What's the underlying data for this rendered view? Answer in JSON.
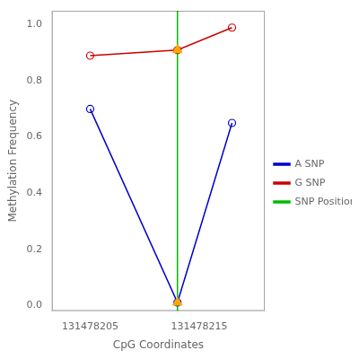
{
  "chart_data": {
    "type": "line",
    "xlabel": "CpG Coordinates",
    "ylabel": "Methylation Frequency",
    "x": [
      131478205,
      131478213,
      131478218
    ],
    "series": [
      {
        "name": "A SNP",
        "color": "#0000CC",
        "marker": "circle",
        "values": [
          0.7,
          0.01,
          0.65
        ]
      },
      {
        "name": "G SNP",
        "color": "#CC0000",
        "marker": "circle",
        "values": [
          0.89,
          0.91,
          0.99
        ]
      },
      {
        "name": "SNP Position",
        "type": "vline",
        "color": "#00BB00",
        "x": 131478213
      },
      {
        "type": "scatter",
        "color": "#FFA500",
        "marker": "triangle",
        "x": [
          131478213,
          131478213
        ],
        "values": [
          0.91,
          0.01
        ]
      }
    ],
    "xlim": [
      131478201.5,
      131478221
    ],
    "xticks": [
      131478205,
      131478215
    ],
    "ylim": [
      -0.02,
      1.05
    ],
    "yticks": [
      {
        "value": 0.0,
        "label": "0.0"
      },
      0.2,
      0.4,
      0.6,
      0.8,
      {
        "value": 1.0,
        "label": "1.0"
      }
    ],
    "grid": false,
    "legend": "right"
  }
}
